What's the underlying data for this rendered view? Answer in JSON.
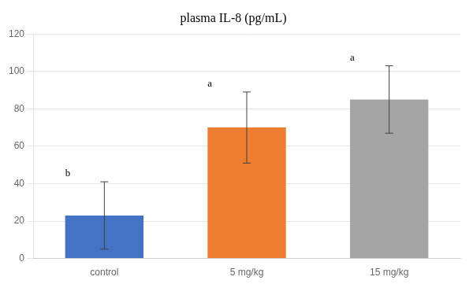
{
  "chart_data": {
    "type": "bar",
    "title": "plasma IL-8 (pg/mL)",
    "categories": [
      "control",
      "5 mg/kg",
      "15 mg/kg"
    ],
    "values": [
      23,
      70,
      85
    ],
    "errors": [
      18,
      19,
      18
    ],
    "colors": [
      "#4472C4",
      "#ED7D31",
      "#A5A5A5"
    ],
    "annotations": [
      "b",
      "a",
      "a"
    ],
    "ylim": [
      0,
      120
    ],
    "yticks": [
      0,
      20,
      40,
      60,
      80,
      100,
      120
    ],
    "grid": true
  }
}
